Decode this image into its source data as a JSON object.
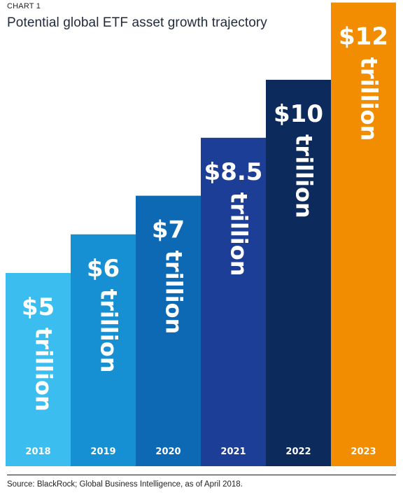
{
  "header": {
    "eyebrow": "CHART 1",
    "title": "Potential global ETF asset growth trajectory"
  },
  "footer": {
    "source": "Source: BlackRock; Global Business Intelligence, as of April 2018."
  },
  "chart_data": {
    "type": "bar",
    "title": "Potential global ETF asset growth trajectory",
    "xlabel": "",
    "ylabel": "",
    "ylim": [
      0,
      13
    ],
    "grid": false,
    "categories": [
      "2018",
      "2019",
      "2020",
      "2021",
      "2022",
      "2023"
    ],
    "values": [
      5,
      6,
      7,
      8.5,
      10,
      12
    ],
    "value_labels": [
      "$5",
      "$6",
      "$7",
      "$8.5",
      "$10",
      "$12"
    ],
    "unit_label": "trillion",
    "colors": [
      "#3cbdef",
      "#1690d2",
      "#0e69b4",
      "#1c3e96",
      "#0c2a5b",
      "#f28c00"
    ]
  }
}
